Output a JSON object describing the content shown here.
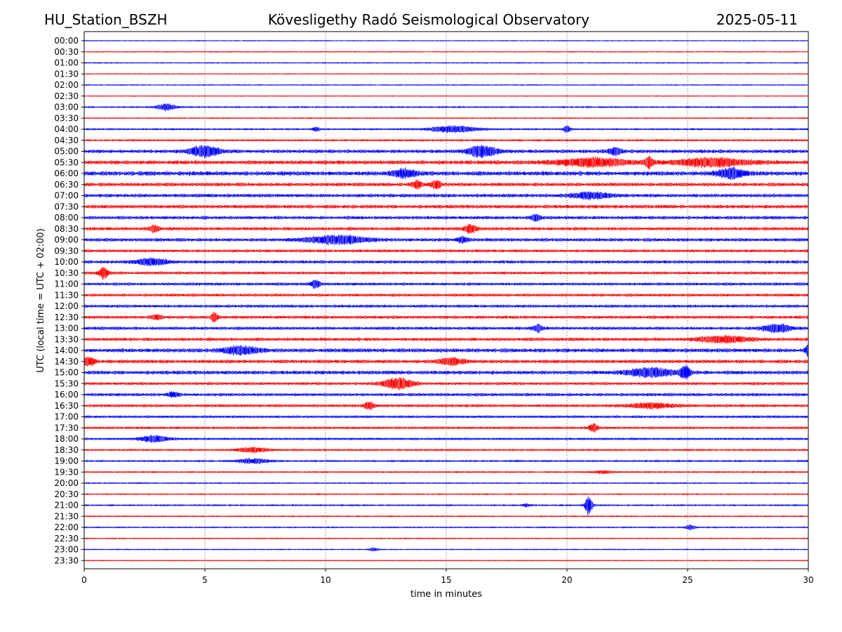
{
  "header": {
    "station": "HU_Station_BSZH",
    "observatory": "Kövesligethy Radó Seismological Observatory",
    "date": "2025-05-11"
  },
  "chart_data": {
    "type": "line",
    "title": "Kövesligethy Radó Seismological Observatory",
    "xlabel": "time in minutes",
    "ylabel": "UTC (local time = UTC + 02:00)",
    "xlim": [
      0,
      30
    ],
    "x_ticks": [
      0,
      5,
      10,
      15,
      20,
      25,
      30
    ],
    "grid": {
      "x": true,
      "y": false,
      "style": "dotted"
    },
    "series_colors": [
      "#0000ff",
      "#ff0000"
    ],
    "rows": [
      "00:00",
      "00:30",
      "01:00",
      "01:30",
      "02:00",
      "02:30",
      "03:00",
      "03:30",
      "04:00",
      "04:30",
      "05:00",
      "05:30",
      "06:00",
      "06:30",
      "07:00",
      "07:30",
      "08:00",
      "08:30",
      "09:00",
      "09:30",
      "10:00",
      "10:30",
      "11:00",
      "11:30",
      "12:00",
      "12:30",
      "13:00",
      "13:30",
      "14:00",
      "14:30",
      "15:00",
      "15:30",
      "16:00",
      "16:30",
      "17:00",
      "17:30",
      "18:00",
      "18:30",
      "19:00",
      "19:30",
      "20:00",
      "20:30",
      "21:00",
      "21:30",
      "22:00",
      "22:30",
      "23:00",
      "23:30"
    ],
    "noise_level": [
      0.3,
      0.35,
      0.4,
      0.35,
      0.4,
      0.35,
      0.6,
      0.5,
      0.7,
      0.8,
      1.6,
      1.8,
      2.0,
      1.6,
      1.6,
      1.6,
      1.5,
      1.5,
      1.5,
      1.3,
      1.4,
      1.3,
      1.3,
      1.3,
      1.3,
      1.4,
      1.4,
      1.5,
      1.8,
      1.6,
      1.7,
      1.3,
      1.4,
      1.3,
      1.1,
      1.1,
      1.0,
      0.8,
      0.7,
      0.6,
      0.5,
      0.5,
      0.6,
      0.5,
      0.5,
      0.45,
      0.4,
      0.4
    ],
    "bursts": [
      {
        "row": "03:00",
        "t": 3.4,
        "amp": 4,
        "dur": 0.8
      },
      {
        "row": "04:00",
        "t": 15.3,
        "amp": 4,
        "dur": 2
      },
      {
        "row": "04:00",
        "t": 20.0,
        "amp": 4,
        "dur": 0.3
      },
      {
        "row": "04:00",
        "t": 9.6,
        "amp": 3,
        "dur": 0.3
      },
      {
        "row": "05:00",
        "t": 5.0,
        "amp": 7,
        "dur": 1.2
      },
      {
        "row": "05:00",
        "t": 16.5,
        "amp": 7,
        "dur": 1.2
      },
      {
        "row": "05:00",
        "t": 22.0,
        "amp": 4,
        "dur": 0.6
      },
      {
        "row": "05:30",
        "t": 21.0,
        "amp": 5,
        "dur": 3
      },
      {
        "row": "05:30",
        "t": 23.4,
        "amp": 8,
        "dur": 0.3
      },
      {
        "row": "05:30",
        "t": 26.0,
        "amp": 5,
        "dur": 3
      },
      {
        "row": "06:00",
        "t": 13.3,
        "amp": 5,
        "dur": 1
      },
      {
        "row": "06:00",
        "t": 26.8,
        "amp": 6,
        "dur": 1.2
      },
      {
        "row": "06:30",
        "t": 13.8,
        "amp": 5,
        "dur": 0.4
      },
      {
        "row": "06:30",
        "t": 14.6,
        "amp": 5,
        "dur": 0.4
      },
      {
        "row": "07:00",
        "t": 21.0,
        "amp": 4,
        "dur": 1.5
      },
      {
        "row": "08:00",
        "t": 18.7,
        "amp": 4,
        "dur": 0.4
      },
      {
        "row": "08:30",
        "t": 2.9,
        "amp": 4,
        "dur": 0.4
      },
      {
        "row": "08:30",
        "t": 16.0,
        "amp": 5,
        "dur": 0.5
      },
      {
        "row": "09:00",
        "t": 10.5,
        "amp": 5,
        "dur": 2.5
      },
      {
        "row": "09:00",
        "t": 15.7,
        "amp": 4,
        "dur": 0.4
      },
      {
        "row": "10:00",
        "t": 2.8,
        "amp": 4,
        "dur": 1.4
      },
      {
        "row": "10:30",
        "t": 0.8,
        "amp": 7,
        "dur": 0.4
      },
      {
        "row": "11:00",
        "t": 9.6,
        "amp": 5,
        "dur": 0.4
      },
      {
        "row": "12:30",
        "t": 5.4,
        "amp": 5,
        "dur": 0.3
      },
      {
        "row": "12:30",
        "t": 3.0,
        "amp": 3,
        "dur": 0.4
      },
      {
        "row": "13:00",
        "t": 18.8,
        "amp": 4,
        "dur": 0.4
      },
      {
        "row": "13:00",
        "t": 28.7,
        "amp": 5,
        "dur": 1.2
      },
      {
        "row": "13:30",
        "t": 26.5,
        "amp": 4,
        "dur": 2
      },
      {
        "row": "14:00",
        "t": 6.5,
        "amp": 5,
        "dur": 1.5
      },
      {
        "row": "14:00",
        "t": 30.0,
        "amp": 6,
        "dur": 0.3
      },
      {
        "row": "14:30",
        "t": 0.2,
        "amp": 5,
        "dur": 0.5
      },
      {
        "row": "14:30",
        "t": 15.2,
        "amp": 4,
        "dur": 1.2
      },
      {
        "row": "15:00",
        "t": 23.5,
        "amp": 5,
        "dur": 2
      },
      {
        "row": "15:00",
        "t": 24.9,
        "amp": 8,
        "dur": 0.4
      },
      {
        "row": "15:30",
        "t": 13.0,
        "amp": 7,
        "dur": 1.2
      },
      {
        "row": "16:00",
        "t": 3.7,
        "amp": 4,
        "dur": 0.4
      },
      {
        "row": "16:30",
        "t": 11.8,
        "amp": 5,
        "dur": 0.4
      },
      {
        "row": "16:30",
        "t": 23.5,
        "amp": 3,
        "dur": 2
      },
      {
        "row": "17:30",
        "t": 21.1,
        "amp": 5,
        "dur": 0.4
      },
      {
        "row": "18:00",
        "t": 2.9,
        "amp": 4,
        "dur": 1.2
      },
      {
        "row": "18:30",
        "t": 7.0,
        "amp": 3,
        "dur": 1.4
      },
      {
        "row": "19:00",
        "t": 7.0,
        "amp": 3,
        "dur": 1.4
      },
      {
        "row": "19:30",
        "t": 21.5,
        "amp": 2,
        "dur": 0.8
      },
      {
        "row": "21:00",
        "t": 20.9,
        "amp": 12,
        "dur": 0.3
      },
      {
        "row": "21:00",
        "t": 18.3,
        "amp": 2,
        "dur": 0.3
      },
      {
        "row": "22:00",
        "t": 25.1,
        "amp": 3,
        "dur": 0.4
      },
      {
        "row": "23:00",
        "t": 12.0,
        "amp": 2,
        "dur": 0.4
      }
    ]
  }
}
